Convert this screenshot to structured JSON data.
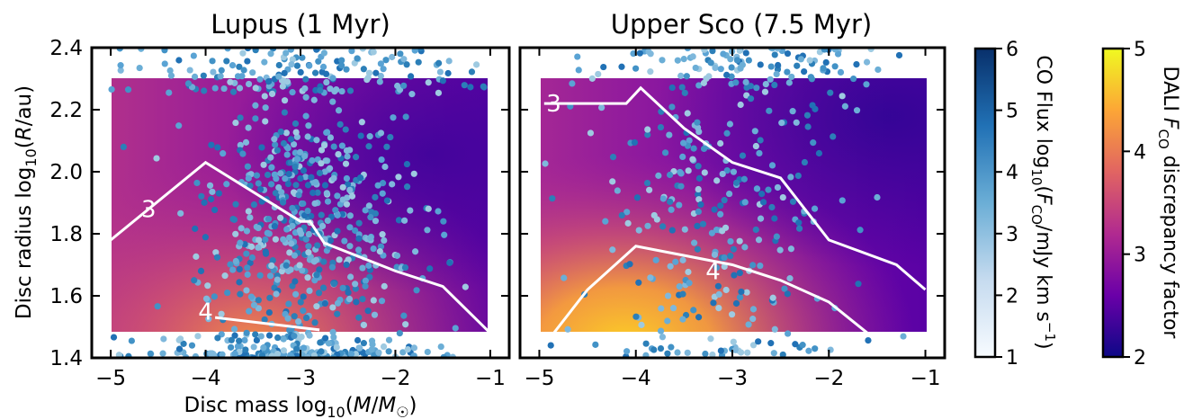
{
  "chart_data": [
    {
      "type": "scatter",
      "title": "Lupus (1 Myr)",
      "xlabel": "Disc mass log₁₀(M/M☉)",
      "ylabel": "Disc radius log₁₀(R/au)",
      "xlim": [
        -5.2,
        -0.8
      ],
      "ylim": [
        1.4,
        2.4
      ],
      "xticks": [
        "−5",
        "−4",
        "−3",
        "−2",
        "−1"
      ],
      "yticks": [
        "1.4",
        "1.6",
        "1.8",
        "2.0",
        "2.2",
        "2.4"
      ],
      "background": "DALI F_CO discrepancy factor heatmap, x -5 to -1, y 1.48 to 2.3",
      "contours": [
        {
          "label": "3",
          "points": [
            [
              -5.0,
              1.78
            ],
            [
              -4.0,
              2.03
            ],
            [
              -3.0,
              1.84
            ],
            [
              -2.9,
              1.84
            ],
            [
              -2.75,
              1.77
            ],
            [
              -2.0,
              1.68
            ],
            [
              -1.5,
              1.63
            ],
            [
              -1.0,
              1.48
            ]
          ]
        },
        {
          "label": "4",
          "points": [
            [
              -3.9,
              1.53
            ],
            [
              -2.8,
              1.49
            ]
          ]
        }
      ],
      "contour_label_positions": [
        [
          -4.6,
          1.88
        ],
        [
          -4.0,
          1.55
        ]
      ],
      "series": [
        {
          "points_estimated": "approximately 900 CO flux model points, densest near x=-3, y=1.6 to 1.8"
        }
      ]
    },
    {
      "type": "scatter",
      "title": "Upper Sco (7.5 Myr)",
      "xlabel": "",
      "ylabel": "",
      "xlim": [
        -5.2,
        -0.8
      ],
      "ylim": [
        1.4,
        2.4
      ],
      "xticks": [
        "−5",
        "−4",
        "−3",
        "−2",
        "−1"
      ],
      "background": "DALI F_CO discrepancy factor heatmap, x -5 to -1, y 1.48 to 2.3",
      "contours": [
        {
          "label": "3",
          "points": [
            [
              -4.95,
              2.22
            ],
            [
              -4.4,
              2.22
            ],
            [
              -4.1,
              2.22
            ],
            [
              -3.95,
              2.27
            ],
            [
              -3.5,
              2.14
            ],
            [
              -3.0,
              2.03
            ],
            [
              -2.5,
              1.98
            ],
            [
              -2.0,
              1.78
            ],
            [
              -1.3,
              1.7
            ],
            [
              -1.0,
              1.62
            ]
          ]
        },
        {
          "label": "4",
          "points": [
            [
              -4.85,
              1.48
            ],
            [
              -4.5,
              1.62
            ],
            [
              -4.0,
              1.76
            ],
            [
              -3.5,
              1.73
            ],
            [
              -3.0,
              1.7
            ],
            [
              -2.5,
              1.65
            ],
            [
              -2.0,
              1.58
            ],
            [
              -1.6,
              1.48
            ]
          ]
        }
      ],
      "contour_label_positions": [
        [
          -4.85,
          2.22
        ],
        [
          -3.2,
          1.68
        ]
      ],
      "series": [
        {
          "points_estimated": "approximately 380 CO flux model points, broad spread across full grid"
        }
      ]
    }
  ],
  "colorbar_co": {
    "label": "CO Flux log₁₀(F_CO/mJy km s⁻¹)",
    "ticks": [
      "1",
      "2",
      "3",
      "4",
      "5",
      "6"
    ],
    "range": [
      1,
      6
    ],
    "colors": [
      "#f7fbff",
      "#c6dbef",
      "#6baed6",
      "#2171b5",
      "#08306b"
    ]
  },
  "colorbar_dali": {
    "label": "DALI F_CO discrepancy factor",
    "ticks": [
      "2",
      "3",
      "4",
      "5"
    ],
    "range": [
      2,
      5
    ],
    "colors": [
      "#0d0887",
      "#6a00a8",
      "#b12a90",
      "#e16462",
      "#fca636",
      "#f0f921"
    ]
  },
  "labels": {
    "left_title": "Lupus (1 Myr)",
    "right_title": "Upper Sco (7.5 Myr)",
    "xlabel_prefix": "Disc mass log",
    "xlabel_sub": "10",
    "xlabel_arg_open": "(",
    "xlabel_M": "M",
    "xlabel_slash": "/",
    "xlabel_Msun": "M",
    "xlabel_sun": "☉",
    "xlabel_close": ")",
    "ylabel_prefix": "Disc radius log",
    "ylabel_sub": "10",
    "ylabel_arg": "(",
    "ylabel_R": "R",
    "ylabel_end": "/au)",
    "co_prefix": "CO Flux log",
    "co_sub": "10",
    "co_arg": "(",
    "co_F": "F",
    "co_Fsub": "CO",
    "co_mid": "/mJy km s",
    "co_sup": "−1",
    "co_end": ")",
    "dali_prefix": "DALI ",
    "dali_F": "F",
    "dali_Fsub": "CO",
    "dali_rest": " discrepancy factor"
  }
}
